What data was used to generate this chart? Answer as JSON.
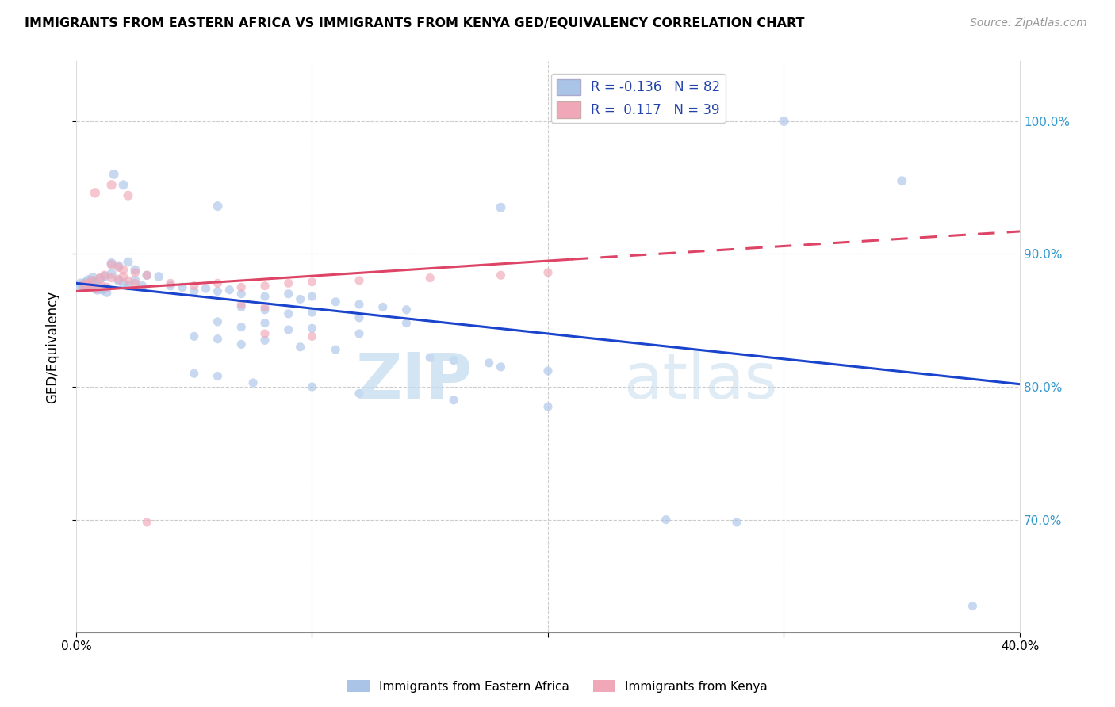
{
  "title": "IMMIGRANTS FROM EASTERN AFRICA VS IMMIGRANTS FROM KENYA GED/EQUIVALENCY CORRELATION CHART",
  "source": "Source: ZipAtlas.com",
  "ylabel": "GED/Equivalency",
  "blue_R": -0.136,
  "blue_N": 82,
  "pink_R": 0.117,
  "pink_N": 39,
  "blue_color": "#aac4e8",
  "pink_color": "#f0a8b8",
  "blue_line_color": "#1a44cc",
  "pink_line_color": "#dd4466",
  "xlim": [
    0.0,
    0.4
  ],
  "ylim": [
    0.615,
    1.045
  ],
  "blue_line": [
    [
      0.0,
      0.878
    ],
    [
      0.4,
      0.802
    ]
  ],
  "pink_line_solid": [
    [
      0.0,
      0.872
    ],
    [
      0.21,
      0.896
    ]
  ],
  "pink_line_dash": [
    [
      0.21,
      0.896
    ],
    [
      0.4,
      0.917
    ]
  ],
  "blue_scatter": [
    [
      0.002,
      0.877
    ],
    [
      0.003,
      0.876
    ],
    [
      0.004,
      0.878
    ],
    [
      0.005,
      0.875
    ],
    [
      0.006,
      0.877
    ],
    [
      0.007,
      0.876
    ],
    [
      0.008,
      0.874
    ],
    [
      0.009,
      0.873
    ],
    [
      0.01,
      0.875
    ],
    [
      0.011,
      0.873
    ],
    [
      0.012,
      0.874
    ],
    [
      0.013,
      0.871
    ],
    [
      0.005,
      0.88
    ],
    [
      0.007,
      0.882
    ],
    [
      0.008,
      0.879
    ],
    [
      0.01,
      0.881
    ],
    [
      0.012,
      0.883
    ],
    [
      0.015,
      0.885
    ],
    [
      0.018,
      0.88
    ],
    [
      0.02,
      0.878
    ],
    [
      0.022,
      0.876
    ],
    [
      0.025,
      0.88
    ],
    [
      0.028,
      0.876
    ],
    [
      0.015,
      0.893
    ],
    [
      0.018,
      0.891
    ],
    [
      0.022,
      0.894
    ],
    [
      0.025,
      0.888
    ],
    [
      0.03,
      0.884
    ],
    [
      0.035,
      0.883
    ],
    [
      0.04,
      0.876
    ],
    [
      0.045,
      0.875
    ],
    [
      0.05,
      0.872
    ],
    [
      0.055,
      0.874
    ],
    [
      0.06,
      0.872
    ],
    [
      0.065,
      0.873
    ],
    [
      0.07,
      0.87
    ],
    [
      0.08,
      0.868
    ],
    [
      0.09,
      0.87
    ],
    [
      0.095,
      0.866
    ],
    [
      0.1,
      0.868
    ],
    [
      0.11,
      0.864
    ],
    [
      0.12,
      0.862
    ],
    [
      0.13,
      0.86
    ],
    [
      0.14,
      0.858
    ],
    [
      0.07,
      0.86
    ],
    [
      0.08,
      0.858
    ],
    [
      0.09,
      0.855
    ],
    [
      0.1,
      0.856
    ],
    [
      0.12,
      0.852
    ],
    [
      0.14,
      0.848
    ],
    [
      0.06,
      0.849
    ],
    [
      0.07,
      0.845
    ],
    [
      0.08,
      0.848
    ],
    [
      0.09,
      0.843
    ],
    [
      0.1,
      0.844
    ],
    [
      0.12,
      0.84
    ],
    [
      0.05,
      0.838
    ],
    [
      0.06,
      0.836
    ],
    [
      0.07,
      0.832
    ],
    [
      0.08,
      0.835
    ],
    [
      0.095,
      0.83
    ],
    [
      0.11,
      0.828
    ],
    [
      0.15,
      0.822
    ],
    [
      0.16,
      0.82
    ],
    [
      0.175,
      0.818
    ],
    [
      0.18,
      0.815
    ],
    [
      0.2,
      0.812
    ],
    [
      0.016,
      0.96
    ],
    [
      0.02,
      0.952
    ],
    [
      0.06,
      0.936
    ],
    [
      0.18,
      0.935
    ],
    [
      0.3,
      1.0
    ],
    [
      0.35,
      0.955
    ],
    [
      0.05,
      0.81
    ],
    [
      0.06,
      0.808
    ],
    [
      0.075,
      0.803
    ],
    [
      0.1,
      0.8
    ],
    [
      0.12,
      0.795
    ],
    [
      0.16,
      0.79
    ],
    [
      0.2,
      0.785
    ],
    [
      0.25,
      0.7
    ],
    [
      0.28,
      0.698
    ],
    [
      0.38,
      0.635
    ]
  ],
  "blue_sizes": [
    120,
    100,
    90,
    80,
    80,
    80,
    80,
    75,
    75,
    75,
    70,
    70,
    90,
    85,
    80,
    80,
    80,
    80,
    80,
    75,
    75,
    75,
    70,
    80,
    75,
    75,
    75,
    70,
    70,
    70,
    70,
    68,
    68,
    65,
    65,
    65,
    65,
    65,
    65,
    65,
    65,
    65,
    65,
    65,
    65,
    65,
    65,
    65,
    65,
    65,
    65,
    65,
    65,
    65,
    65,
    65,
    65,
    65,
    65,
    65,
    65,
    65,
    65,
    65,
    65,
    65,
    65,
    75,
    75,
    75,
    75,
    75,
    75,
    65,
    65,
    65,
    65,
    65,
    65,
    65,
    65,
    65,
    65
  ],
  "pink_scatter": [
    [
      0.003,
      0.877
    ],
    [
      0.005,
      0.876
    ],
    [
      0.007,
      0.875
    ],
    [
      0.009,
      0.874
    ],
    [
      0.011,
      0.876
    ],
    [
      0.013,
      0.875
    ],
    [
      0.005,
      0.878
    ],
    [
      0.007,
      0.88
    ],
    [
      0.01,
      0.882
    ],
    [
      0.012,
      0.884
    ],
    [
      0.015,
      0.882
    ],
    [
      0.018,
      0.881
    ],
    [
      0.02,
      0.883
    ],
    [
      0.022,
      0.88
    ],
    [
      0.025,
      0.878
    ],
    [
      0.015,
      0.892
    ],
    [
      0.018,
      0.89
    ],
    [
      0.02,
      0.888
    ],
    [
      0.025,
      0.886
    ],
    [
      0.03,
      0.884
    ],
    [
      0.04,
      0.878
    ],
    [
      0.05,
      0.876
    ],
    [
      0.06,
      0.878
    ],
    [
      0.07,
      0.875
    ],
    [
      0.08,
      0.876
    ],
    [
      0.09,
      0.878
    ],
    [
      0.1,
      0.879
    ],
    [
      0.12,
      0.88
    ],
    [
      0.15,
      0.882
    ],
    [
      0.18,
      0.884
    ],
    [
      0.2,
      0.886
    ],
    [
      0.008,
      0.946
    ],
    [
      0.015,
      0.952
    ],
    [
      0.022,
      0.944
    ],
    [
      0.07,
      0.862
    ],
    [
      0.08,
      0.86
    ],
    [
      0.08,
      0.84
    ],
    [
      0.1,
      0.838
    ],
    [
      0.03,
      0.698
    ]
  ],
  "pink_sizes": [
    80,
    80,
    75,
    75,
    70,
    70,
    75,
    75,
    70,
    70,
    70,
    68,
    68,
    65,
    65,
    75,
    70,
    70,
    68,
    65,
    65,
    65,
    65,
    65,
    65,
    65,
    65,
    65,
    65,
    65,
    65,
    80,
    80,
    75,
    65,
    65,
    65,
    65,
    65
  ],
  "watermark_zip": "ZIP",
  "watermark_atlas": "atlas",
  "background_color": "#ffffff",
  "grid_color": "#cccccc"
}
